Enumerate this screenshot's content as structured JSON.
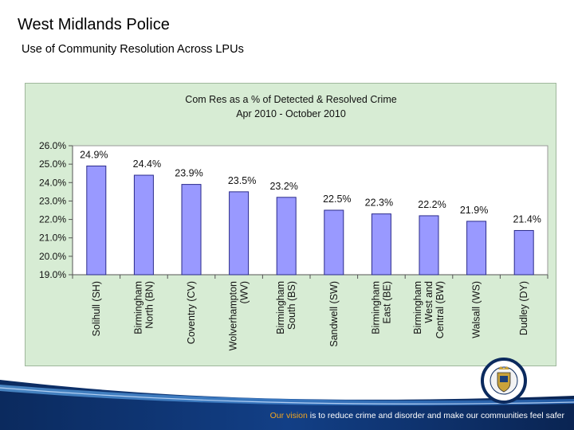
{
  "slide": {
    "title": "West Midlands Police",
    "subtitle": "Use of Community Resolution Across LPUs"
  },
  "footer": {
    "accent_text": "Our vision",
    "rest_text": " is to reduce crime and disorder and make our communities feel safer"
  },
  "colors": {
    "panel_background": "#d7ecd4",
    "plot_background": "#ffffff",
    "bar_fill": "#9999ff",
    "bar_stroke": "#2a2a8a",
    "footer_accent": "#f1a51f"
  },
  "chart_data": {
    "type": "bar",
    "title_lines": [
      "Com Res as a % of Detected & Resolved Crime",
      "Apr 2010 - October 2010"
    ],
    "categories": [
      [
        "Solihull (SH)"
      ],
      [
        "Birmingham",
        "North (BN)"
      ],
      [
        "Coventry (CV)"
      ],
      [
        "Wolverhampton",
        "(WV)"
      ],
      [
        "Birmingham",
        "South (BS)"
      ],
      [
        "Sandwell (SW)"
      ],
      [
        "Birmingham",
        "East (BE)"
      ],
      [
        "Birmingham",
        "West and",
        "Central (BW)"
      ],
      [
        "Walsall (WS)"
      ],
      [
        "Dudley (DY)"
      ]
    ],
    "values": [
      24.9,
      24.4,
      23.9,
      23.5,
      23.2,
      22.5,
      22.3,
      22.2,
      21.9,
      21.4
    ],
    "data_labels": [
      "24.9%",
      "24.4%",
      "23.9%",
      "23.5%",
      "23.2%",
      "22.5%",
      "22.3%",
      "22.2%",
      "21.9%",
      "21.4%"
    ],
    "ylim": [
      19.0,
      26.0
    ],
    "yticks": [
      19.0,
      20.0,
      21.0,
      22.0,
      23.0,
      24.0,
      25.0,
      26.0
    ],
    "ytick_labels": [
      "19.0%",
      "20.0%",
      "21.0%",
      "22.0%",
      "23.0%",
      "24.0%",
      "25.0%",
      "26.0%"
    ],
    "xlabel": "",
    "ylabel": "",
    "grid": false,
    "legend": "none"
  }
}
